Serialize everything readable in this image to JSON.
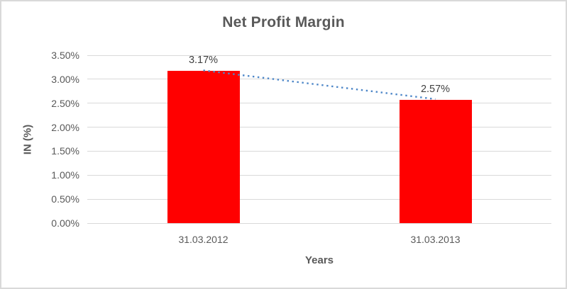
{
  "chart_data": {
    "type": "bar",
    "title": "Net Profit Margin",
    "xlabel": "Years",
    "ylabel": "IN (%)",
    "categories": [
      "31.03.2012",
      "31.03.2013"
    ],
    "values": [
      3.17,
      2.57
    ],
    "data_labels": [
      "3.17%",
      "2.57%"
    ],
    "ylim": [
      0,
      3.5
    ],
    "ytick_step": 0.5,
    "ytick_labels": [
      "0.00%",
      "0.50%",
      "1.00%",
      "1.50%",
      "2.00%",
      "2.50%",
      "3.00%",
      "3.50%"
    ],
    "grid": true,
    "legend": false,
    "bar_color": "#FF0000",
    "gridline_color": "#D9D9D9",
    "axis_text_color": "#595959",
    "data_label_color": "#404040",
    "trendline": {
      "type": "linear",
      "style": "dotted",
      "color": "#4E87C8",
      "x": [
        "31.03.2012",
        "31.03.2013"
      ],
      "y": [
        3.17,
        2.57
      ]
    }
  }
}
